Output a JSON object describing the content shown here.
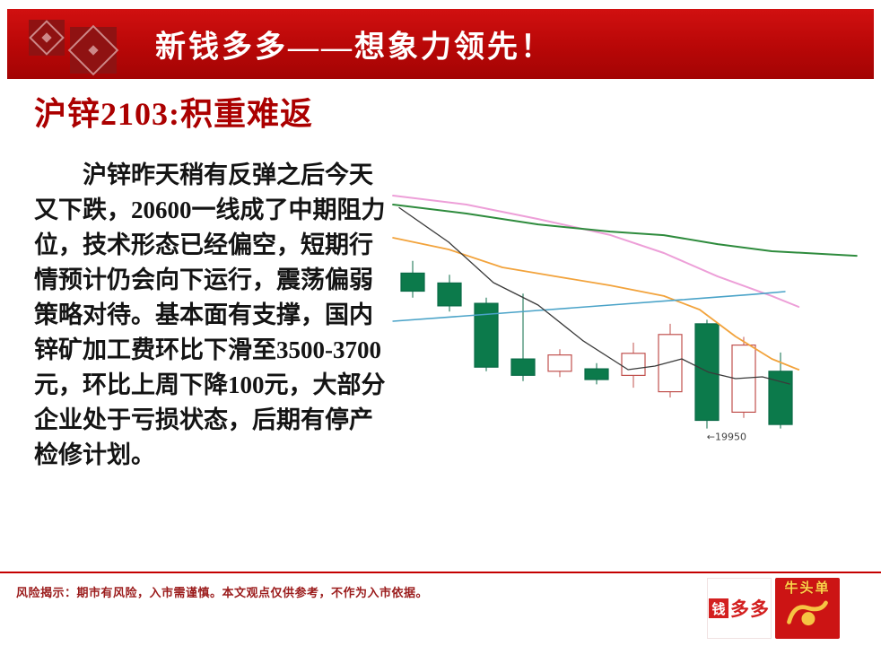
{
  "header": {
    "title": "新钱多多——想象力领先！"
  },
  "main": {
    "title": "沪锌2103:积重难返",
    "paragraph_lines": [
      "　　沪锌昨天稍有反弹之后今天",
      "又下跌，20600一线成了中期阻力",
      "位，技术形态已经偏空，短期行",
      "情预计仍会向下运行，震荡偏弱",
      "策略对待。基本面有支撑，国内",
      "锌矿加工费环比下滑至3500-3700",
      "元，环比上周下降100元，大部分",
      "企业处于亏损状态，后期有停产",
      "检修计划。"
    ]
  },
  "footer": {
    "disclaimer": "风险揭示：期市有风险，入市需谨慎。本文观点仅供参考，不作为入市依据。",
    "logo1": {
      "box_char": "钱",
      "rest": "多多"
    },
    "logo2": {
      "label": "牛头单"
    }
  },
  "colors": {
    "banner_red": "#b80707",
    "title_red": "#ab0000",
    "footer_red": "#9b1c1c",
    "divider_red": "#c40000"
  },
  "chart_data": {
    "type": "candlestick",
    "title": "",
    "xlabel": "",
    "ylabel": "",
    "ylim": [
      19800,
      21500
    ],
    "grid": false,
    "legend": false,
    "candle_down_fill": "#0c7a4b",
    "candle_down_stroke": "#0a6b47",
    "candle_up_fill": "#ffffff",
    "candle_up_stroke": "#c0504d",
    "annotation": {
      "text": "←19950",
      "x_frac": 0.672,
      "price": 19880
    },
    "candles": [
      {
        "open": 20900,
        "close": 20790,
        "high": 20975,
        "low": 20750,
        "dir": "down"
      },
      {
        "open": 20840,
        "close": 20700,
        "high": 20890,
        "low": 20665,
        "dir": "down"
      },
      {
        "open": 20715,
        "close": 20325,
        "high": 20750,
        "low": 20300,
        "dir": "down"
      },
      {
        "open": 20375,
        "close": 20275,
        "high": 20775,
        "low": 20240,
        "dir": "down"
      },
      {
        "open": 20300,
        "close": 20400,
        "high": 20435,
        "low": 20265,
        "dir": "up"
      },
      {
        "open": 20315,
        "close": 20250,
        "high": 20350,
        "low": 20220,
        "dir": "down"
      },
      {
        "open": 20275,
        "close": 20410,
        "high": 20475,
        "low": 20200,
        "dir": "up"
      },
      {
        "open": 20175,
        "close": 20525,
        "high": 20590,
        "low": 20140,
        "dir": "up"
      },
      {
        "open": 20590,
        "close": 20000,
        "high": 20615,
        "low": 19950,
        "dir": "down"
      },
      {
        "open": 20050,
        "close": 20460,
        "high": 20510,
        "low": 20015,
        "dir": "up"
      },
      {
        "open": 20300,
        "close": 19975,
        "high": 20415,
        "low": 19950,
        "dir": "down"
      }
    ],
    "lines": [
      {
        "name": "ma-pink",
        "color": "#ed9fd8",
        "width": 2,
        "points": [
          [
            0.006,
            21374
          ],
          [
            0.162,
            21319
          ],
          [
            0.314,
            21231
          ],
          [
            0.467,
            21133
          ],
          [
            0.581,
            21023
          ],
          [
            0.695,
            20880
          ],
          [
            0.81,
            20760
          ],
          [
            0.867,
            20694
          ]
        ]
      },
      {
        "name": "ma-green",
        "color": "#2e8b3d",
        "width": 2,
        "points": [
          [
            0.006,
            21319
          ],
          [
            0.162,
            21264
          ],
          [
            0.314,
            21198
          ],
          [
            0.467,
            21154
          ],
          [
            0.581,
            21132
          ],
          [
            0.695,
            21077
          ],
          [
            0.81,
            21034
          ],
          [
            0.99,
            21006
          ]
        ]
      },
      {
        "name": "ma-orange",
        "color": "#f2a33c",
        "width": 1.8,
        "points": [
          [
            0.006,
            21116
          ],
          [
            0.124,
            21045
          ],
          [
            0.238,
            20935
          ],
          [
            0.352,
            20880
          ],
          [
            0.467,
            20825
          ],
          [
            0.581,
            20760
          ],
          [
            0.657,
            20677
          ],
          [
            0.733,
            20513
          ],
          [
            0.81,
            20376
          ],
          [
            0.867,
            20310
          ]
        ]
      },
      {
        "name": "ma-blue",
        "color": "#4aa3c8",
        "width": 1.6,
        "points": [
          [
            0.006,
            20606
          ],
          [
            0.162,
            20639
          ],
          [
            0.314,
            20672
          ],
          [
            0.467,
            20705
          ],
          [
            0.619,
            20737
          ],
          [
            0.771,
            20770
          ],
          [
            0.838,
            20787
          ]
        ]
      },
      {
        "name": "ma-dark",
        "color": "#3a3a3a",
        "width": 1.3,
        "points": [
          [
            0.019,
            21300
          ],
          [
            0.124,
            21089
          ],
          [
            0.219,
            20842
          ],
          [
            0.314,
            20705
          ],
          [
            0.41,
            20485
          ],
          [
            0.505,
            20310
          ],
          [
            0.562,
            20332
          ],
          [
            0.619,
            20376
          ],
          [
            0.676,
            20294
          ],
          [
            0.733,
            20255
          ],
          [
            0.79,
            20266
          ],
          [
            0.848,
            20222
          ]
        ]
      }
    ]
  }
}
